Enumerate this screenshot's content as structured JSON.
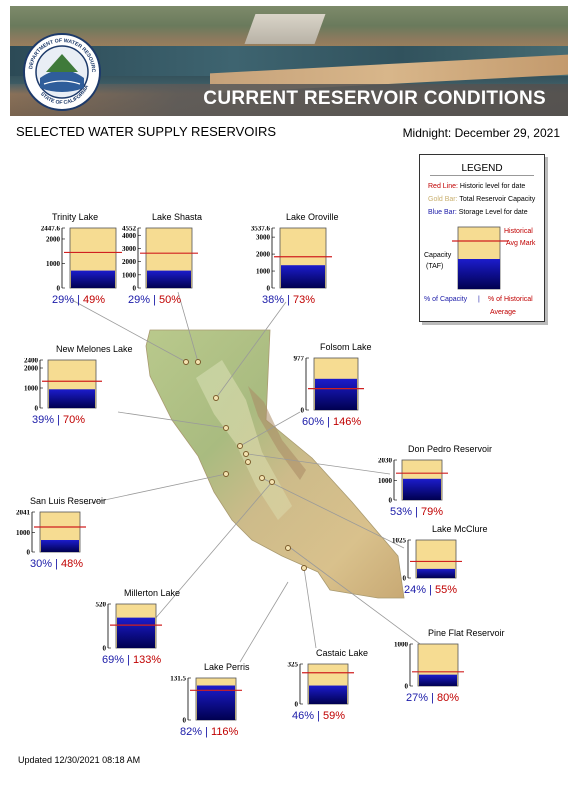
{
  "header": {
    "title": "CURRENT RESERVOIR CONDITIONS",
    "seal_text": "DEPARTMENT OF WATER RESOURCES · STATE OF CALIFORNIA"
  },
  "subtitle": "SELECTED WATER SUPPLY RESERVOIRS",
  "date": "Midnight: December 29, 2021",
  "updated": "Updated 12/30/2021 08:18 AM",
  "legend": {
    "title": "LEGEND",
    "red_key": "Red Line:",
    "red_desc": "Historic level for date",
    "gold_key": "Gold Bar:",
    "gold_desc": "Total Reservoir Capacity",
    "blue_key": "Blue Bar:",
    "blue_desc": "Storage Level for date",
    "historical": "Historical",
    "avg_mark": "Avg Mark",
    "capacity": "Capacity",
    "taf": "(TAF)",
    "pct_capacity": "% of Capacity",
    "sep": "|",
    "pct_historical": "% of Historical",
    "average": "Average"
  },
  "colors": {
    "gold": "#f6dc92",
    "blue_top": "#1c1ccc",
    "blue_bottom": "#000050",
    "red_line": "#d02020",
    "pct_capacity": "#1a1aa8",
    "pct_historical": "#c00000"
  },
  "chart_data": {
    "type": "bar",
    "title": "CURRENT RESERVOIR CONDITIONS",
    "units": "TAF",
    "reservoirs": [
      {
        "name": "Trinity Lake",
        "capacity": 2447.6,
        "ticks": [
          "2447.6",
          "2000",
          "1000",
          "0"
        ],
        "storage": 710,
        "historical_avg": 1450,
        "pct_capacity": "29%",
        "pct_historical": "49%"
      },
      {
        "name": "Lake Shasta",
        "capacity": 4552,
        "ticks": [
          "4552",
          "4000",
          "3000",
          "2000",
          "1000",
          "0"
        ],
        "storage": 1320,
        "historical_avg": 2640,
        "pct_capacity": "29%",
        "pct_historical": "50%"
      },
      {
        "name": "Lake Oroville",
        "capacity": 3537.6,
        "ticks": [
          "3537.6",
          "3000",
          "2000",
          "1000",
          "0"
        ],
        "storage": 1344,
        "historical_avg": 1841,
        "pct_capacity": "38%",
        "pct_historical": "73%"
      },
      {
        "name": "New Melones Lake",
        "capacity": 2400,
        "ticks": [
          "2400",
          "2000",
          "1000",
          "0"
        ],
        "storage": 936,
        "historical_avg": 1337,
        "pct_capacity": "39%",
        "pct_historical": "70%"
      },
      {
        "name": "Folsom Lake",
        "capacity": 977,
        "ticks": [
          "977",
          "0"
        ],
        "storage": 586,
        "historical_avg": 401,
        "pct_capacity": "60%",
        "pct_historical": "146%"
      },
      {
        "name": "Don Pedro Reservoir",
        "capacity": 2030,
        "ticks": [
          "2030",
          "1000",
          "0"
        ],
        "storage": 1076,
        "historical_avg": 1362,
        "pct_capacity": "53%",
        "pct_historical": "79%"
      },
      {
        "name": "San Luis Reservoir",
        "capacity": 2041,
        "ticks": [
          "2041",
          "1000",
          "0"
        ],
        "storage": 612,
        "historical_avg": 1275,
        "pct_capacity": "30%",
        "pct_historical": "48%"
      },
      {
        "name": "Lake McClure",
        "capacity": 1025,
        "ticks": [
          "1025",
          "0"
        ],
        "storage": 246,
        "historical_avg": 447,
        "pct_capacity": "24%",
        "pct_historical": "55%"
      },
      {
        "name": "Millerton Lake",
        "capacity": 520,
        "ticks": [
          "520",
          "0"
        ],
        "storage": 359,
        "historical_avg": 270,
        "pct_capacity": "69%",
        "pct_historical": "133%"
      },
      {
        "name": "Pine Flat Reservoir",
        "capacity": 1000,
        "ticks": [
          "1000",
          "0"
        ],
        "storage": 270,
        "historical_avg": 338,
        "pct_capacity": "27%",
        "pct_historical": "80%"
      },
      {
        "name": "Castaic Lake",
        "capacity": 325,
        "ticks": [
          "325",
          "0"
        ],
        "storage": 150,
        "historical_avg": 254,
        "pct_capacity": "46%",
        "pct_historical": "59%"
      },
      {
        "name": "Lake Perris",
        "capacity": 131.5,
        "ticks": [
          "131.5",
          "0"
        ],
        "storage": 108,
        "historical_avg": 93,
        "pct_capacity": "82%",
        "pct_historical": "116%"
      }
    ]
  }
}
